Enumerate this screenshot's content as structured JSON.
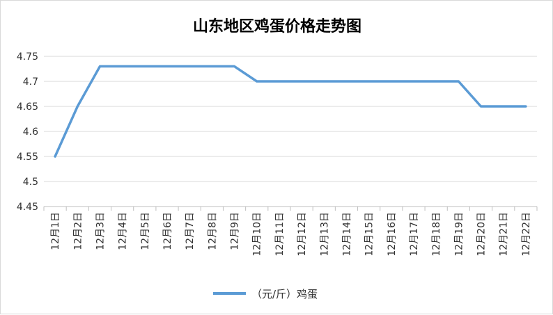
{
  "chart_data": {
    "type": "line",
    "title": "山东地区鸡蛋价格走势图",
    "xlabel": "",
    "ylabel": "",
    "categories": [
      "12月1日",
      "12月2日",
      "12月3日",
      "12月4日",
      "12月5日",
      "12月6日",
      "12月7日",
      "12月8日",
      "12月9日",
      "12月10日",
      "12月11日",
      "12月12日",
      "12月13日",
      "12月14日",
      "12月15日",
      "12月16日",
      "12月17日",
      "12月18日",
      "12月19日",
      "12月20日",
      "12月21日",
      "12月22日"
    ],
    "series": [
      {
        "name": "（元/斤）鸡蛋",
        "color": "#5b9bd5",
        "values": [
          4.55,
          4.65,
          4.73,
          4.73,
          4.73,
          4.73,
          4.73,
          4.73,
          4.73,
          4.7,
          4.7,
          4.7,
          4.7,
          4.7,
          4.7,
          4.7,
          4.7,
          4.7,
          4.7,
          4.65,
          4.65,
          4.65
        ]
      }
    ],
    "ylim": [
      4.45,
      4.75
    ],
    "yticks": [
      "4.45",
      "4.5",
      "4.55",
      "4.6",
      "4.65",
      "4.7",
      "4.75"
    ],
    "grid": true,
    "legend": "bottom"
  },
  "colors": {
    "gridline": "#d9d9d9",
    "axis": "#bfbfbf",
    "series": "#5b9bd5"
  }
}
